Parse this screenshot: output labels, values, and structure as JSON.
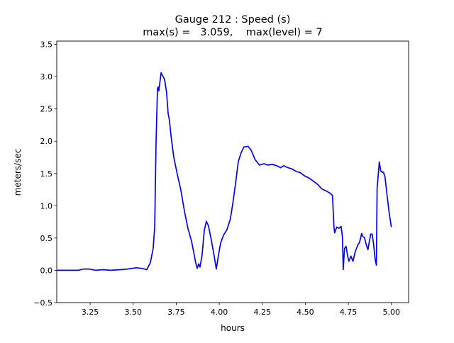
{
  "chart_data": {
    "type": "line",
    "title": [
      "Gauge 212 : Speed (s)",
      "max(s) =   3.059,    max(level) = 7"
    ],
    "xlabel": "hours",
    "ylabel": "meters/sec",
    "xlim": [
      3.056,
      5.1
    ],
    "ylim": [
      -0.5,
      3.55
    ],
    "xticks": [
      3.25,
      3.5,
      3.75,
      4.0,
      4.25,
      4.5,
      4.75,
      5.0
    ],
    "xtick_labels": [
      "3.25",
      "3.50",
      "3.75",
      "4.00",
      "4.25",
      "4.50",
      "4.75",
      "5.00"
    ],
    "yticks": [
      -0.5,
      0.0,
      0.5,
      1.0,
      1.5,
      2.0,
      2.5,
      3.0,
      3.5
    ],
    "ytick_labels": [
      "−0.5",
      "0.0",
      "0.5",
      "1.0",
      "1.5",
      "2.0",
      "2.5",
      "3.0",
      "3.5"
    ],
    "grid": false,
    "series": [
      {
        "color": "#0000ff",
        "x": [
          3.056,
          3.18,
          3.213,
          3.242,
          3.283,
          3.324,
          3.365,
          3.427,
          3.468,
          3.518,
          3.551,
          3.579,
          3.6,
          3.616,
          3.625,
          3.633,
          3.641,
          3.645,
          3.649,
          3.653,
          3.662,
          3.674,
          3.682,
          3.694,
          3.703,
          3.711,
          3.719,
          3.736,
          3.756,
          3.777,
          3.798,
          3.818,
          3.839,
          3.851,
          3.863,
          3.872,
          3.88,
          3.888,
          3.9,
          3.913,
          3.925,
          3.937,
          3.954,
          3.97,
          3.983,
          3.995,
          4.008,
          4.024,
          4.045,
          4.065,
          4.078,
          4.094,
          4.111,
          4.127,
          4.143,
          4.168,
          4.185,
          4.209,
          4.234,
          4.259,
          4.283,
          4.308,
          4.333,
          4.357,
          4.374,
          4.399,
          4.423,
          4.448,
          4.473,
          4.497,
          4.522,
          4.547,
          4.572,
          4.596,
          4.621,
          4.646,
          4.658,
          4.666,
          4.67,
          4.683,
          4.695,
          4.708,
          4.716,
          4.72,
          4.728,
          4.737,
          4.745,
          4.753,
          4.765,
          4.777,
          4.79,
          4.806,
          4.815,
          4.827,
          4.835,
          4.843,
          4.856,
          4.864,
          4.872,
          4.88,
          4.888,
          4.897,
          4.905,
          4.913,
          4.917,
          4.926,
          4.93,
          4.938,
          4.946,
          4.954,
          4.963,
          4.975,
          4.987,
          5.0
        ],
        "y": [
          0,
          0,
          0.02,
          0.02,
          0,
          0.01,
          0,
          0.01,
          0.02,
          0.04,
          0.03,
          0.01,
          0.12,
          0.34,
          0.67,
          1.99,
          2.81,
          2.84,
          2.78,
          2.87,
          3.059,
          3.0,
          2.96,
          2.76,
          2.43,
          2.32,
          2.1,
          1.75,
          1.49,
          1.24,
          0.91,
          0.65,
          0.45,
          0.29,
          0.12,
          0.03,
          0.1,
          0.05,
          0.23,
          0.62,
          0.76,
          0.69,
          0.47,
          0.23,
          0.02,
          0.23,
          0.42,
          0.54,
          0.63,
          0.8,
          1.02,
          1.33,
          1.69,
          1.82,
          1.91,
          1.92,
          1.86,
          1.71,
          1.63,
          1.65,
          1.63,
          1.64,
          1.62,
          1.59,
          1.62,
          1.59,
          1.57,
          1.53,
          1.51,
          1.46,
          1.43,
          1.38,
          1.33,
          1.26,
          1.23,
          1.19,
          1.16,
          0.69,
          0.58,
          0.67,
          0.65,
          0.68,
          0.51,
          0.01,
          0.34,
          0.37,
          0.23,
          0.14,
          0.22,
          0.14,
          0.29,
          0.4,
          0.43,
          0.57,
          0.52,
          0.51,
          0.38,
          0.32,
          0.45,
          0.56,
          0.56,
          0.4,
          0.18,
          0.08,
          1.27,
          1.55,
          1.68,
          1.54,
          1.52,
          1.52,
          1.44,
          1.16,
          0.89,
          0.67
        ]
      }
    ]
  }
}
